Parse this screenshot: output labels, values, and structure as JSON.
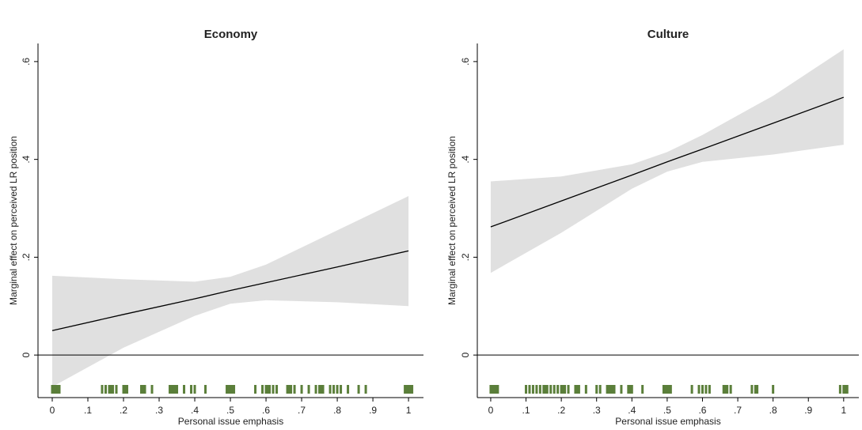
{
  "chart_data": [
    {
      "type": "line",
      "title": "Economy",
      "x_label": "Personal issue emphasis",
      "y_label": "Marginal effect on perceived LR position",
      "x": [
        0,
        0.2,
        0.4,
        0.5,
        0.6,
        0.8,
        1
      ],
      "series": [
        {
          "color": "#000000",
          "band_color": "#e0e0e0",
          "values": [
            0.05,
            0.083,
            0.115,
            0.132,
            0.148,
            0.18,
            0.213
          ],
          "upper": [
            0.162,
            0.155,
            0.15,
            0.16,
            0.185,
            0.255,
            0.325
          ],
          "lower": [
            -0.065,
            0.015,
            0.08,
            0.105,
            0.112,
            0.108,
            0.1
          ]
        }
      ],
      "hline": 0,
      "rug_color": "#5b7f3a",
      "rug": [
        0,
        0.005,
        0.01,
        0.015,
        0.02,
        0.14,
        0.15,
        0.16,
        0.165,
        0.17,
        0.18,
        0.2,
        0.205,
        0.21,
        0.25,
        0.255,
        0.26,
        0.28,
        0.33,
        0.335,
        0.34,
        0.345,
        0.35,
        0.37,
        0.39,
        0.4,
        0.43,
        0.49,
        0.495,
        0.5,
        0.505,
        0.51,
        0.57,
        0.59,
        0.6,
        0.605,
        0.61,
        0.62,
        0.63,
        0.66,
        0.665,
        0.67,
        0.68,
        0.7,
        0.72,
        0.74,
        0.75,
        0.755,
        0.76,
        0.78,
        0.79,
        0.8,
        0.81,
        0.83,
        0.86,
        0.88,
        0.99,
        0.995,
        1,
        1.005,
        1.01
      ],
      "xlim": [
        -0.04,
        1.042
      ],
      "ylim": [
        -0.087,
        0.637
      ],
      "xticks": [
        0,
        {
          "value": 0.1,
          "label": ".1"
        },
        {
          "value": 0.2,
          "label": ".2"
        },
        {
          "value": 0.3,
          "label": ".3"
        },
        {
          "value": 0.4,
          "label": ".4"
        },
        {
          "value": 0.5,
          "label": ".5"
        },
        {
          "value": 0.6,
          "label": ".6"
        },
        {
          "value": 0.7,
          "label": ".7"
        },
        {
          "value": 0.8,
          "label": ".8"
        },
        {
          "value": 0.9,
          "label": ".9"
        },
        1
      ],
      "yticks": [
        0,
        {
          "value": 0.2,
          "label": ".2"
        },
        {
          "value": 0.4,
          "label": ".4"
        },
        {
          "value": 0.6,
          "label": ".6"
        }
      ]
    },
    {
      "type": "line",
      "title": "Culture",
      "x_label": "Personal issue emphasis",
      "y_label": "Marginal effect on perceived LR position",
      "x": [
        0,
        0.2,
        0.4,
        0.5,
        0.6,
        0.8,
        1
      ],
      "series": [
        {
          "color": "#000000",
          "band_color": "#e0e0e0",
          "values": [
            0.262,
            0.315,
            0.368,
            0.395,
            0.421,
            0.474,
            0.527
          ],
          "upper": [
            0.355,
            0.365,
            0.39,
            0.415,
            0.45,
            0.53,
            0.625
          ],
          "lower": [
            0.168,
            0.25,
            0.34,
            0.375,
            0.395,
            0.41,
            0.43
          ]
        }
      ],
      "hline": 0,
      "rug_color": "#5b7f3a",
      "rug": [
        0,
        0.005,
        0.01,
        0.015,
        0.02,
        0.1,
        0.11,
        0.12,
        0.13,
        0.14,
        0.15,
        0.155,
        0.16,
        0.17,
        0.18,
        0.19,
        0.2,
        0.205,
        0.21,
        0.22,
        0.24,
        0.245,
        0.25,
        0.27,
        0.3,
        0.31,
        0.33,
        0.335,
        0.34,
        0.345,
        0.35,
        0.37,
        0.39,
        0.395,
        0.4,
        0.43,
        0.49,
        0.495,
        0.5,
        0.505,
        0.51,
        0.57,
        0.59,
        0.6,
        0.61,
        0.62,
        0.66,
        0.665,
        0.67,
        0.68,
        0.74,
        0.75,
        0.755,
        0.8,
        0.99,
        1,
        1.005,
        1.01
      ],
      "xlim": [
        -0.038,
        1.043
      ],
      "ylim": [
        -0.087,
        0.637
      ],
      "xticks": [
        0,
        {
          "value": 0.1,
          "label": ".1"
        },
        {
          "value": 0.2,
          "label": ".2"
        },
        {
          "value": 0.3,
          "label": ".3"
        },
        {
          "value": 0.4,
          "label": ".4"
        },
        {
          "value": 0.5,
          "label": ".5"
        },
        {
          "value": 0.6,
          "label": ".6"
        },
        {
          "value": 0.7,
          "label": ".7"
        },
        {
          "value": 0.8,
          "label": ".8"
        },
        {
          "value": 0.9,
          "label": ".9"
        },
        1
      ],
      "yticks": [
        0,
        {
          "value": 0.2,
          "label": ".2"
        },
        {
          "value": 0.4,
          "label": ".4"
        },
        {
          "value": 0.6,
          "label": ".6"
        }
      ]
    }
  ]
}
